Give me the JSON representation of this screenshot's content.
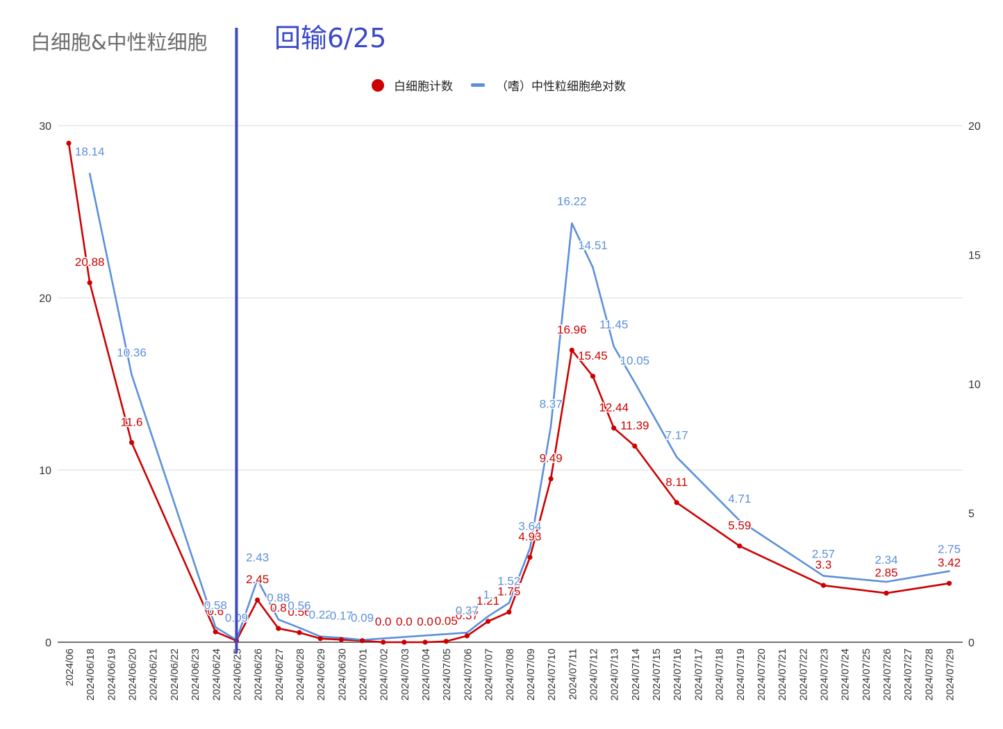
{
  "title": "白细胞&中性粒细胞",
  "annotation": "回输6/25",
  "colors": {
    "wbc": "#cc0000",
    "neut": "#5b8fdc",
    "marker": "#3949c8",
    "grid": "#d9d9d9",
    "axis": "#333333"
  },
  "legend": {
    "wbc": "白细胞计数",
    "neut": "（嗜）中性粒细胞绝对数"
  },
  "chart_data": {
    "type": "line",
    "categories": [
      "2024/06",
      "2024/06/18",
      "2024/06/19",
      "2024/06/20",
      "2024/06/21",
      "2024/06/22",
      "2024/06/23",
      "2024/06/24",
      "2024/06/25",
      "2024/06/26",
      "2024/06/27",
      "2024/06/28",
      "2024/06/29",
      "2024/06/30",
      "2024/07/01",
      "2024/07/02",
      "2024/07/03",
      "2024/07/04",
      "2024/07/05",
      "2024/07/06",
      "2024/07/07",
      "2024/07/08",
      "2024/07/09",
      "2024/07/10",
      "2024/07/11",
      "2024/07/12",
      "2024/07/13",
      "2024/07/14",
      "2024/07/15",
      "2024/07/16",
      "2024/07/17",
      "2024/07/18",
      "2024/07/19",
      "2024/07/20",
      "2024/07/21",
      "2024/07/22",
      "2024/07/23",
      "2024/07/24",
      "2024/07/25",
      "2024/07/26",
      "2024/07/27",
      "2024/07/28",
      "2024/07/29"
    ],
    "y_left": {
      "min": 0,
      "max": 30,
      "ticks": [
        0,
        10,
        20,
        30
      ]
    },
    "y_right": {
      "min": 0,
      "max": 20,
      "ticks": [
        0,
        5,
        10,
        15,
        20
      ]
    },
    "grid": true,
    "legend_position": "top",
    "vertical_marker": {
      "category": "2024/06/25",
      "label": "回输6/25"
    },
    "series": [
      {
        "name": "白细胞计数",
        "axis": "left",
        "marker": "dot",
        "values": [
          28.98,
          20.88,
          null,
          11.6,
          null,
          null,
          null,
          0.6,
          0.09,
          2.45,
          0.8,
          0.56,
          0.21,
          0.15,
          0.09,
          0.0,
          0.0,
          0.0,
          0.05,
          0.37,
          1.21,
          1.75,
          4.93,
          9.49,
          16.96,
          15.45,
          12.44,
          11.39,
          null,
          8.11,
          null,
          null,
          5.59,
          null,
          null,
          null,
          3.3,
          null,
          null,
          2.85,
          null,
          null,
          3.42
        ],
        "labels": [
          "",
          "20.88",
          "",
          "11.6",
          "",
          "",
          "",
          "0.6",
          "",
          "2.45",
          "0.8",
          "0.56",
          "",
          "",
          "",
          "0.0",
          "0.0",
          "0.0",
          "0.05",
          "0.37",
          "1.21",
          "1.75",
          "4.93",
          "9.49",
          "16.96",
          "15.45",
          "12.44",
          "11.39",
          "",
          "8.11",
          "",
          "",
          "5.59",
          "",
          "",
          "",
          "3.3",
          "",
          "",
          "2.85",
          "",
          "",
          "3.42"
        ]
      },
      {
        "name": "（嗜）中性粒细胞绝对数",
        "axis": "right",
        "marker": "none",
        "values": [
          null,
          18.14,
          null,
          10.36,
          null,
          null,
          null,
          0.58,
          0.09,
          2.43,
          0.88,
          0.56,
          0.22,
          0.17,
          0.09,
          null,
          null,
          null,
          null,
          0.37,
          1.0,
          1.52,
          3.64,
          8.37,
          16.22,
          14.51,
          11.45,
          10.05,
          null,
          7.17,
          null,
          null,
          4.71,
          null,
          null,
          null,
          2.57,
          null,
          null,
          2.34,
          null,
          null,
          2.75
        ],
        "labels": [
          "",
          "18.14",
          "",
          "10.36",
          "",
          "",
          "",
          "0.58",
          "0.09",
          "2.43",
          "0.88",
          "0.56",
          "0.22",
          "0.17",
          "0.09",
          "",
          "",
          "",
          "",
          "0.37",
          "1.",
          "1.52",
          "3.64",
          "8.37",
          "16.22",
          "14.51",
          "11.45",
          "10.05",
          "",
          "7.17",
          "",
          "",
          "4.71",
          "",
          "",
          "",
          "2.57",
          "",
          "",
          "2.34",
          "",
          "",
          "2.75"
        ]
      }
    ]
  }
}
